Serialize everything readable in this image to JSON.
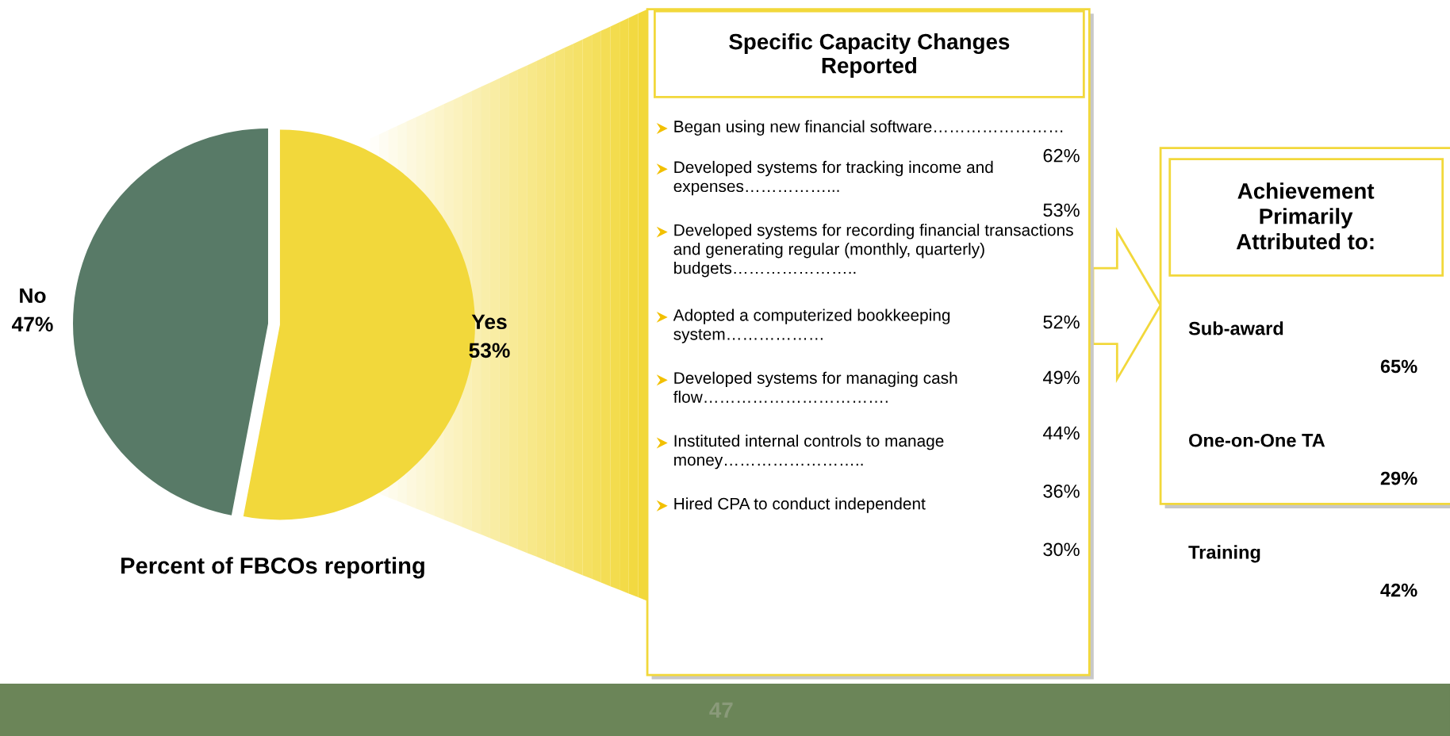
{
  "chart_data": [
    {
      "type": "pie",
      "title": "Percent of FBCOs reporting",
      "categories": [
        "No",
        "Yes"
      ],
      "values": [
        47,
        53
      ],
      "value_labels": [
        "47%",
        "53%"
      ],
      "colors": [
        "#587a67",
        "#f2d83b"
      ],
      "annotations": [
        "47"
      ]
    },
    {
      "type": "other",
      "title": "Specific Capacity Changes Reported",
      "annotations": [
        "Began using new financial software……………………",
        "Developed systems for tracking income and\nexpenses……………...",
        "Developed systems for recording financial transactions\nand generating regular (monthly, quarterly)\nbudgets…………………..",
        "Adopted a computerized bookkeeping\nsystem………………",
        "Developed systems for managing cash\nflow…………………………….",
        "Instituted internal controls to manage\nmoney……………………..",
        "Hired CPA to conduct independent"
      ]
    },
    {
      "type": "other",
      "annotations": [
        "62%",
        "53%",
        "52%",
        "49%",
        "44%",
        "36%",
        "30%"
      ]
    },
    {
      "type": "other",
      "title": "Achievement Primarily Attributed to:",
      "annotations": [
        "Sub-award",
        "65%",
        "One-on-One TA",
        "29%",
        "Training",
        "42%"
      ]
    }
  ]
}
